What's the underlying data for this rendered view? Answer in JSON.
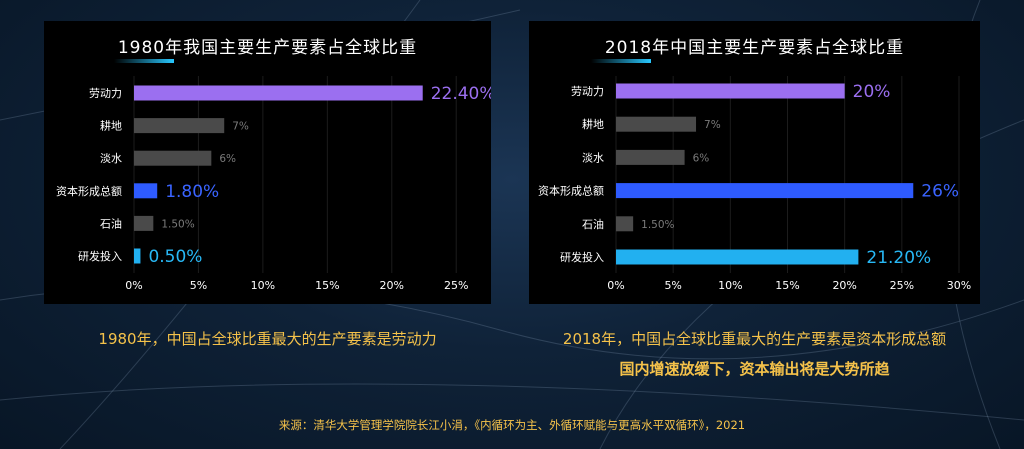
{
  "chart_data": [
    {
      "type": "bar",
      "orientation": "horizontal",
      "title": "1980年我国主要生产要素占全球比重",
      "categories": [
        "劳动力",
        "耕地",
        "淡水",
        "资本形成总额",
        "石油",
        "研发投入"
      ],
      "values": [
        22.4,
        7,
        6,
        1.8,
        1.5,
        0.5
      ],
      "value_labels": [
        "22.40%",
        "7%",
        "6%",
        "1.80%",
        "1.50%",
        "0.50%"
      ],
      "bar_colors": [
        "#9b6ff0",
        "#4a4a4a",
        "#4a4a4a",
        "#2e5bff",
        "#4a4a4a",
        "#22b0f0"
      ],
      "label_colors": [
        "#9b6ff0",
        "#7a7a7a",
        "#7a7a7a",
        "#3a64ff",
        "#7a7a7a",
        "#28b8f5"
      ],
      "label_emphasis": [
        true,
        false,
        false,
        true,
        false,
        true
      ],
      "xlim": [
        0,
        27
      ],
      "ticks": [
        0,
        5,
        10,
        15,
        20,
        25
      ],
      "tick_labels": [
        "0%",
        "5%",
        "10%",
        "15%",
        "20%",
        "25%"
      ]
    },
    {
      "type": "bar",
      "orientation": "horizontal",
      "title": "2018年中国主要生产要素占全球比重",
      "categories": [
        "劳动力",
        "耕地",
        "淡水",
        "资本形成总额",
        "石油",
        "研发投入"
      ],
      "values": [
        20,
        7,
        6,
        26,
        1.5,
        21.2
      ],
      "value_labels": [
        "20%",
        "7%",
        "6%",
        "26%",
        "1.50%",
        "21.20%"
      ],
      "bar_colors": [
        "#9b6ff0",
        "#4a4a4a",
        "#4a4a4a",
        "#2e5bff",
        "#4a4a4a",
        "#22b0f0"
      ],
      "label_colors": [
        "#9b6ff0",
        "#7a7a7a",
        "#7a7a7a",
        "#3a64ff",
        "#7a7a7a",
        "#28b8f5"
      ],
      "label_emphasis": [
        true,
        false,
        false,
        true,
        false,
        true
      ],
      "xlim": [
        0,
        30
      ],
      "ticks": [
        0,
        5,
        10,
        15,
        20,
        25,
        30
      ],
      "tick_labels": [
        "0%",
        "5%",
        "10%",
        "15%",
        "20%",
        "25%",
        "30%"
      ]
    }
  ],
  "captions": {
    "left": "1980年，中国占全球比重最大的生产要素是劳动力",
    "right_line1": "2018年，中国占全球比重最大的生产要素是资本形成总额",
    "right_line2": "国内增速放缓下，资本输出将是大势所趋"
  },
  "source": "来源：清华大学管理学院院长江小涓，《内循环为主、外循环赋能与更高水平双循环》，2021"
}
